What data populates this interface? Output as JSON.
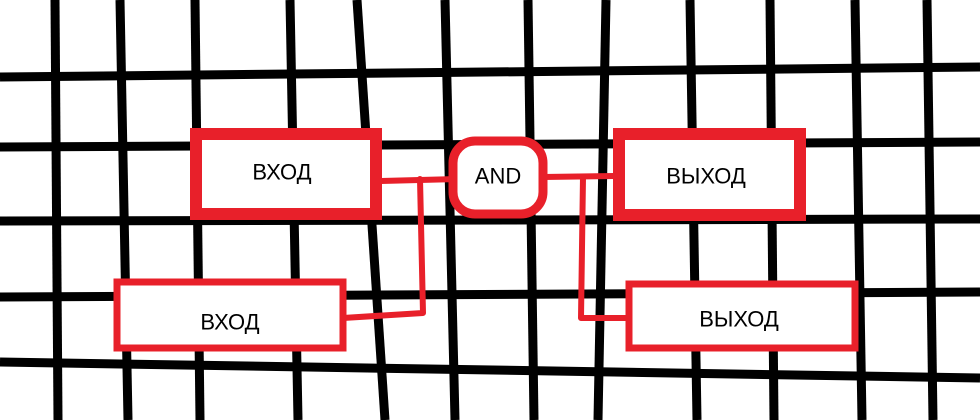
{
  "colors": {
    "grid": "#000000",
    "accent": "#e8202a",
    "background": "#ffffff"
  },
  "blocks": {
    "input_top": "ВХОД",
    "input_bottom": "ВХОД",
    "gate": "AND",
    "output_top": "ВЫХОД",
    "output_bottom": "ВЫХОД"
  }
}
